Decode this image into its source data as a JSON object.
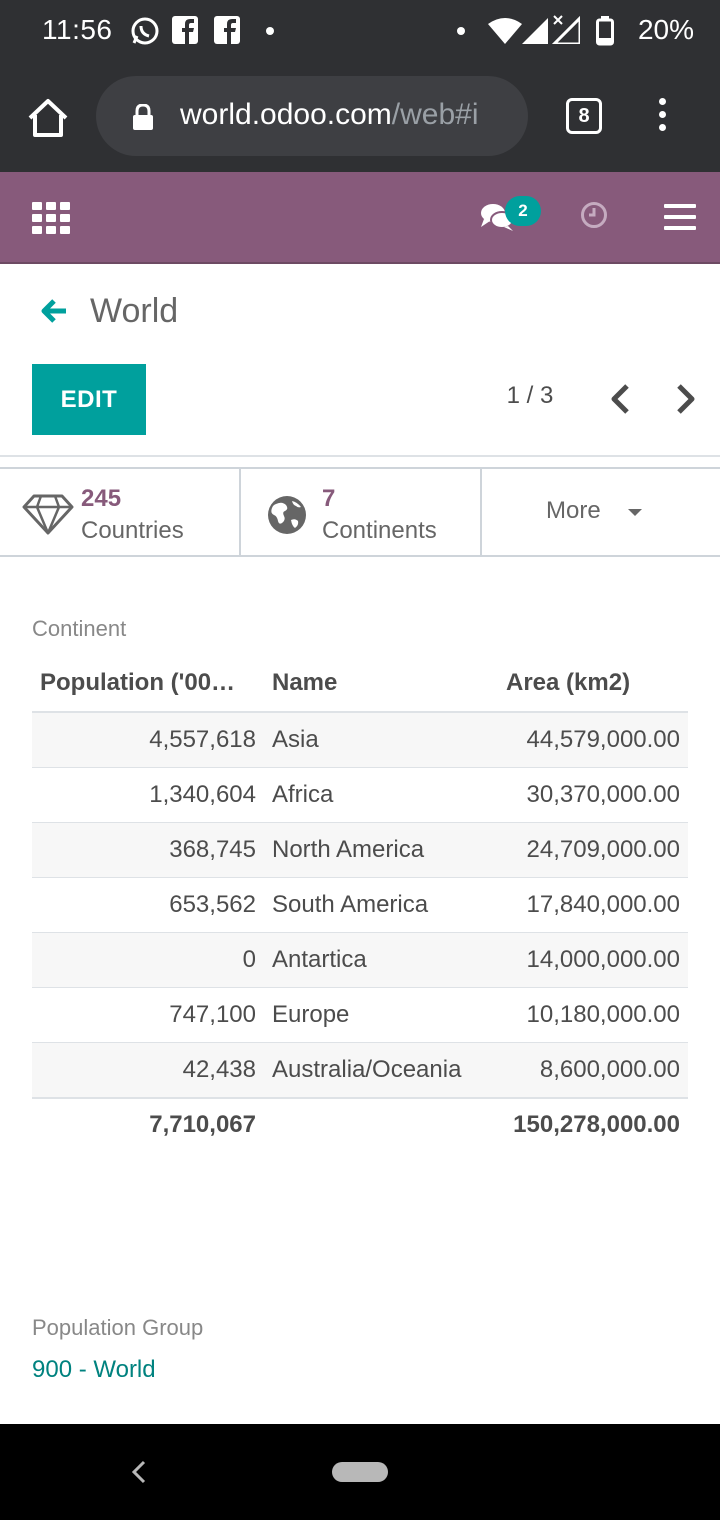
{
  "status_bar": {
    "time": "11:56",
    "battery": "20%"
  },
  "browser": {
    "url_domain": "world.odoo.com",
    "url_path": "/web#i",
    "tab_count": "8"
  },
  "navbar": {
    "chat_badge": "2"
  },
  "control_panel": {
    "title": "World",
    "edit_label": "EDIT",
    "pager": "1 / 3"
  },
  "button_box": {
    "countries": {
      "value": "245",
      "label": "Countries"
    },
    "continents": {
      "value": "7",
      "label": "Continents"
    },
    "more_label": "More"
  },
  "continent_section": {
    "label": "Continent",
    "headers": {
      "population": "Population ('00…",
      "name": "Name",
      "area": "Area (km2)"
    },
    "rows": [
      {
        "population": "4,557,618",
        "name": "Asia",
        "area": "44,579,000.00"
      },
      {
        "population": "1,340,604",
        "name": "Africa",
        "area": "30,370,000.00"
      },
      {
        "population": "368,745",
        "name": "North America",
        "area": "24,709,000.00"
      },
      {
        "population": "653,562",
        "name": "South America",
        "area": "17,840,000.00"
      },
      {
        "population": "0",
        "name": "Antartica",
        "area": "14,000,000.00"
      },
      {
        "population": "747,100",
        "name": "Europe",
        "area": "10,180,000.00"
      },
      {
        "population": "42,438",
        "name": "Australia/Oceania",
        "area": "8,600,000.00"
      }
    ],
    "totals": {
      "population": "7,710,067",
      "area": "150,278,000.00"
    }
  },
  "population_group": {
    "label": "Population Group",
    "value": "900 - World"
  },
  "colors": {
    "brand": "#875a7b",
    "accent": "#00a09d",
    "link": "#00827f"
  }
}
